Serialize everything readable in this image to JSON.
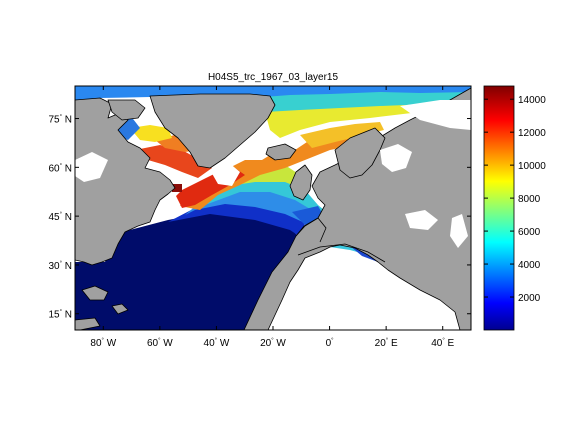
{
  "figure": {
    "title": "H04S5_trc_1967_03_layer15"
  },
  "map": {
    "lon_range": [
      -90,
      50
    ],
    "lat_range": [
      10,
      85
    ],
    "lat_ticks": [
      {
        "value": 15,
        "num": "15",
        "hem": "N"
      },
      {
        "value": 30,
        "num": "30",
        "hem": "N"
      },
      {
        "value": 45,
        "num": "45",
        "hem": "N"
      },
      {
        "value": 60,
        "num": "60",
        "hem": "N"
      },
      {
        "value": 75,
        "num": "75",
        "hem": "N"
      }
    ],
    "lon_ticks": [
      {
        "value": -80,
        "num": "80",
        "hem": "W"
      },
      {
        "value": -60,
        "num": "60",
        "hem": "W"
      },
      {
        "value": -40,
        "num": "40",
        "hem": "W"
      },
      {
        "value": -20,
        "num": "20",
        "hem": "W"
      },
      {
        "value": 0,
        "num": "0",
        "hem": ""
      },
      {
        "value": 20,
        "num": "20",
        "hem": "E"
      },
      {
        "value": 40,
        "num": "40",
        "hem": "E"
      }
    ],
    "colors": {
      "land": "#a0a0a0",
      "coast": "#000000",
      "no_data": "#ffffff"
    }
  },
  "colorbar": {
    "min": 0,
    "max": 14800,
    "ticks": [
      2000,
      4000,
      6000,
      8000,
      10000,
      12000,
      14000
    ],
    "tick_labels": [
      "2000",
      "4000",
      "6000",
      "8000",
      "10000",
      "12000",
      "14000"
    ],
    "colormap": "jet"
  }
}
